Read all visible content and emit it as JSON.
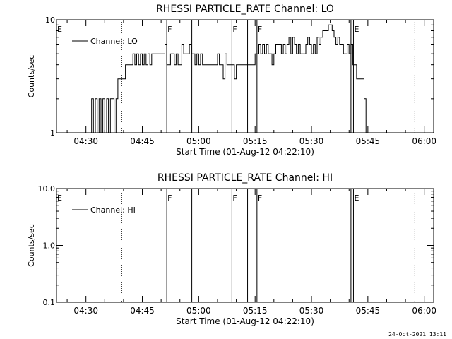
{
  "chart_data": [
    {
      "type": "line",
      "title": "RHESSI PARTICLE_RATE Channel: LO",
      "xlabel": "Start Time (01-Aug-12 04:22:10)",
      "ylabel": "Counts/sec",
      "yscale": "log",
      "ylim": [
        1,
        10
      ],
      "yticks": [
        1,
        10
      ],
      "ytick_labels": [
        "1",
        "10"
      ],
      "xlim": [
        "04:22:10",
        "06:02:30"
      ],
      "xtick_labels": [
        "04:30",
        "04:45",
        "05:00",
        "05:15",
        "05:30",
        "05:45",
        "06:00"
      ],
      "legend": "top-left",
      "series": [
        {
          "name": "Channel: LO",
          "x": [
            "04:31:00",
            "04:31:30",
            "04:32:00",
            "04:32:30",
            "04:33:00",
            "04:33:30",
            "04:34:00",
            "04:34:30",
            "04:35:00",
            "04:35:30",
            "04:36:00",
            "04:36:30",
            "04:37:00",
            "04:37:30",
            "04:38:00",
            "04:38:30",
            "04:39:00",
            "04:39:30",
            "04:40:00",
            "04:40:30",
            "04:41:00",
            "04:41:30",
            "04:42:00",
            "04:42:30",
            "04:43:00",
            "04:43:30",
            "04:44:00",
            "04:44:30",
            "04:45:00",
            "04:45:30",
            "04:46:00",
            "04:46:30",
            "04:47:00",
            "04:47:30",
            "04:48:00",
            "04:48:30",
            "04:49:00",
            "04:49:30",
            "04:50:00",
            "04:50:30",
            "04:51:00",
            "04:51:30",
            "04:52:00",
            "04:52:30",
            "04:53:00",
            "04:53:30",
            "04:54:00",
            "04:54:30",
            "04:55:00",
            "04:55:30",
            "04:56:00",
            "04:56:30",
            "04:57:00",
            "04:57:30",
            "04:58:00",
            "04:58:30",
            "04:59:00",
            "04:59:30",
            "05:00:00",
            "05:00:30",
            "05:01:00",
            "05:01:30",
            "05:02:00",
            "05:02:30",
            "05:03:00",
            "05:03:30",
            "05:04:00",
            "05:04:30",
            "05:05:00",
            "05:05:30",
            "05:06:00",
            "05:06:30",
            "05:07:00",
            "05:07:30",
            "05:08:00",
            "05:08:30",
            "05:09:00",
            "05:09:30",
            "05:10:00",
            "05:10:30",
            "05:11:00",
            "05:11:30",
            "05:12:00",
            "05:12:30",
            "05:13:00",
            "05:13:30",
            "05:14:00",
            "05:14:30",
            "05:15:00",
            "05:15:30",
            "05:16:00",
            "05:16:30",
            "05:17:00",
            "05:17:30",
            "05:18:00",
            "05:18:30",
            "05:19:00",
            "05:19:30",
            "05:20:00",
            "05:20:30",
            "05:21:00",
            "05:21:30",
            "05:22:00",
            "05:22:30",
            "05:23:00",
            "05:23:30",
            "05:24:00",
            "05:24:30",
            "05:25:00",
            "05:25:30",
            "05:26:00",
            "05:26:30",
            "05:27:00",
            "05:27:30",
            "05:28:00",
            "05:28:30",
            "05:29:00",
            "05:29:30",
            "05:30:00",
            "05:30:30",
            "05:31:00",
            "05:31:30",
            "05:32:00",
            "05:32:30",
            "05:33:00",
            "05:33:30",
            "05:34:00",
            "05:34:30",
            "05:35:00",
            "05:35:30",
            "05:36:00",
            "05:36:30",
            "05:37:00",
            "05:37:30",
            "05:38:00",
            "05:38:30",
            "05:39:00",
            "05:39:30",
            "05:40:00",
            "05:40:30",
            "05:41:00",
            "05:41:30",
            "05:42:00",
            "05:42:30",
            "05:43:00",
            "05:43:30",
            "05:44:00",
            "05:44:30",
            "05:45:00"
          ],
          "values": [
            1,
            2,
            1,
            2,
            1,
            2,
            1,
            2,
            1,
            2,
            1,
            2,
            2,
            1,
            2,
            3,
            3,
            3,
            3,
            4,
            4,
            4,
            4,
            5,
            4,
            5,
            4,
            5,
            4,
            5,
            4,
            5,
            4,
            5,
            5,
            5,
            5,
            5,
            5,
            5,
            6,
            4,
            4,
            5,
            5,
            4,
            5,
            4,
            4,
            6,
            5,
            5,
            5,
            6,
            5,
            5,
            4,
            5,
            4,
            5,
            4,
            4,
            4,
            4,
            4,
            4,
            4,
            4,
            5,
            4,
            4,
            3,
            5,
            4,
            4,
            4,
            4,
            3,
            4,
            4,
            4,
            4,
            4,
            4,
            4,
            4,
            4,
            4,
            5,
            5,
            6,
            5,
            6,
            5,
            6,
            5,
            5,
            4,
            5,
            6,
            6,
            6,
            5,
            6,
            5,
            6,
            7,
            5,
            7,
            6,
            5,
            6,
            5,
            5,
            5,
            6,
            7,
            6,
            5,
            6,
            5,
            7,
            6,
            7,
            8,
            8,
            8,
            9,
            9,
            8,
            7,
            6,
            7,
            6,
            6,
            5,
            5,
            6,
            5,
            6,
            4,
            4,
            3,
            3,
            3,
            3,
            2,
            1,
            1
          ]
        }
      ],
      "event_markers": [
        {
          "label": "E",
          "time": "04:22:10"
        },
        {
          "label": "F",
          "time": "04:51:30"
        },
        {
          "label": "F",
          "time": "05:08:50"
        },
        {
          "label": "F",
          "time": "05:15:30"
        },
        {
          "label": "E",
          "time": "05:41:10"
        }
      ]
    },
    {
      "type": "line",
      "title": "RHESSI PARTICLE_RATE Channel: HI",
      "xlabel": "Start Time (01-Aug-12 04:22:10)",
      "ylabel": "Counts/sec",
      "yscale": "log",
      "ylim": [
        0.1,
        10
      ],
      "yticks": [
        0.1,
        1,
        10
      ],
      "ytick_labels": [
        "0.1",
        "1.0",
        "10.0"
      ],
      "xlim": [
        "04:22:10",
        "06:02:30"
      ],
      "xtick_labels": [
        "04:30",
        "04:45",
        "05:00",
        "05:15",
        "05:30",
        "05:45",
        "06:00"
      ],
      "legend": "top-left",
      "series": [
        {
          "name": "Channel: HI",
          "x": [],
          "values": []
        }
      ],
      "event_markers": [
        {
          "label": "E",
          "time": "04:22:10"
        },
        {
          "label": "F",
          "time": "04:51:30"
        },
        {
          "label": "F",
          "time": "05:08:50"
        },
        {
          "label": "F",
          "time": "05:15:30"
        },
        {
          "label": "E",
          "time": "05:41:10"
        }
      ]
    }
  ],
  "timestamp": "24-Oct-2021 13:11"
}
